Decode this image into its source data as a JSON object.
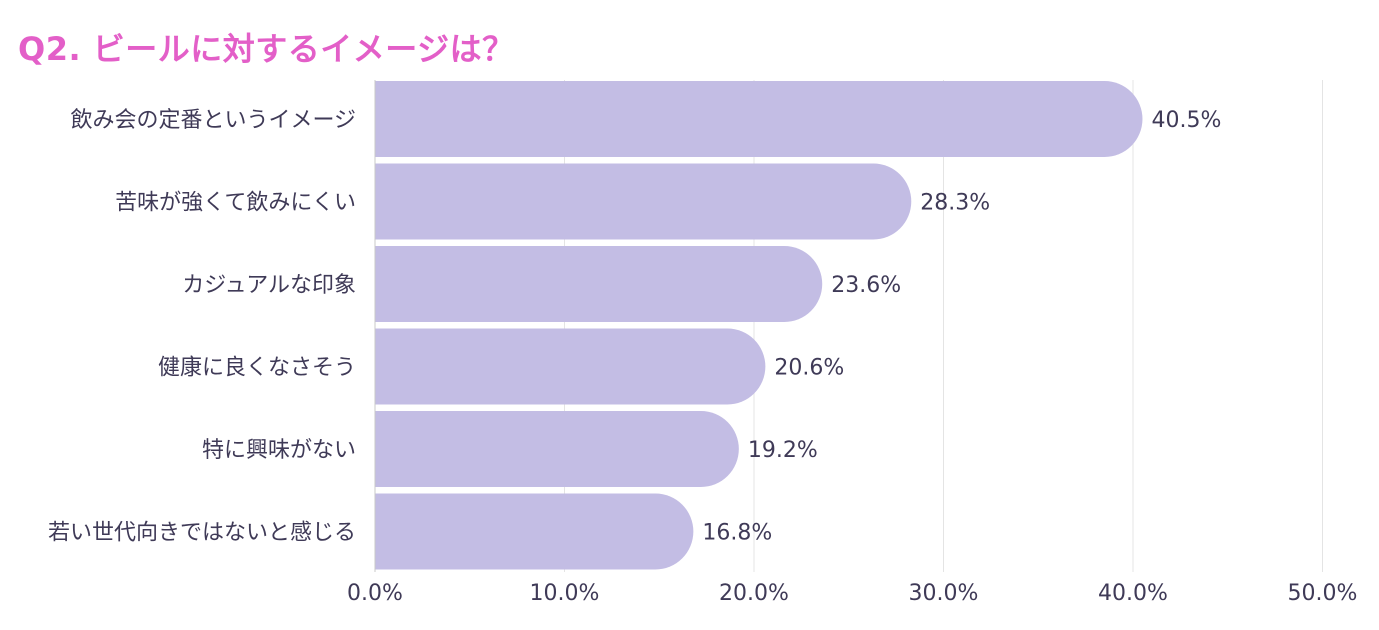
{
  "chart_data": {
    "type": "bar",
    "orientation": "horizontal",
    "title": "Q2. ビールに対するイメージは？",
    "categories": [
      "飲み会の定番というイメージ",
      "苦味が強くて飲みにくい",
      "カジュアルな印象",
      "健康に良くなさそう",
      "特に興味がない",
      "若い世代向きではないと感じる"
    ],
    "values": [
      40.5,
      28.3,
      23.6,
      20.6,
      19.2,
      16.8
    ],
    "value_labels": [
      "40.5%",
      "28.3%",
      "23.6%",
      "20.6%",
      "19.2%",
      "16.8%"
    ],
    "xlim": [
      0,
      50
    ],
    "x_ticks": [
      0,
      10,
      20,
      30,
      40,
      50
    ],
    "x_tick_labels": [
      "0.0%",
      "10.0%",
      "20.0%",
      "30.0%",
      "40.0%",
      "50.0%"
    ],
    "grid": true,
    "colors": {
      "bar": "#c3bde4",
      "title": "#e35fc8",
      "text": "#3f3a57",
      "grid": "#e4e4e4",
      "axis": "#c9c9c9"
    }
  }
}
